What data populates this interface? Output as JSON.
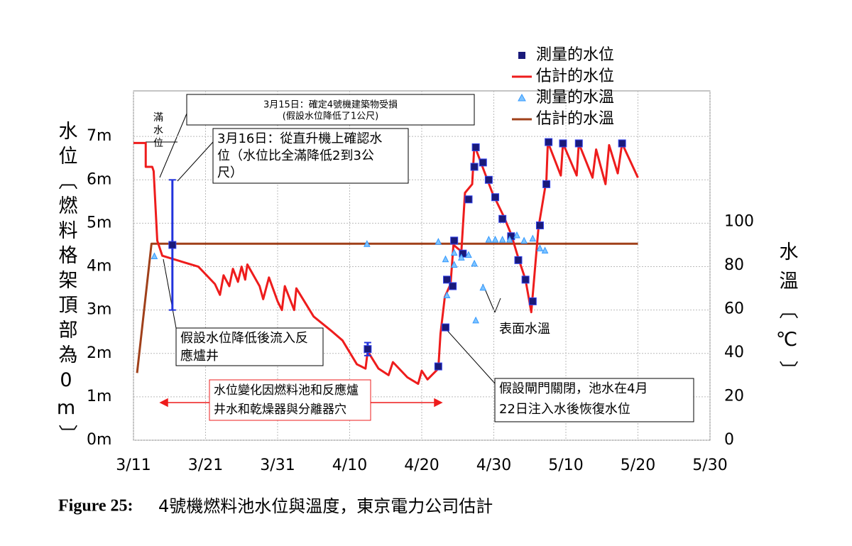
{
  "chart_data": {
    "type": "line",
    "y_label": "水位〔燃料格架頂部為0m〕",
    "y2_label": "水溫〔℃〕",
    "caption_label": "Figure 25:",
    "caption": "4號機燃料池水位與溫度，東京電力公司估計",
    "xlim": [
      0,
      80
    ],
    "xticks": [
      {
        "value": 0,
        "label": "3/11"
      },
      {
        "value": 10,
        "label": "3/21"
      },
      {
        "value": 20,
        "label": "3/31"
      },
      {
        "value": 30,
        "label": "4/10"
      },
      {
        "value": 40,
        "label": "4/20"
      },
      {
        "value": 50,
        "label": "4/30"
      },
      {
        "value": 60,
        "label": "5/10"
      },
      {
        "value": 70,
        "label": "5/20"
      },
      {
        "value": 80,
        "label": "5/30"
      }
    ],
    "ylim": [
      0,
      8.05
    ],
    "yticks": [
      {
        "value": 0,
        "label": "0m"
      },
      {
        "value": 1,
        "label": "1m"
      },
      {
        "value": 2,
        "label": "2m"
      },
      {
        "value": 3,
        "label": "3m"
      },
      {
        "value": 4,
        "label": "4m"
      },
      {
        "value": 5,
        "label": "5m"
      },
      {
        "value": 6,
        "label": "6m"
      },
      {
        "value": 7,
        "label": "7m"
      }
    ],
    "y2lim": [
      0,
      160
    ],
    "y2ticks": [
      0,
      20,
      40,
      60,
      80,
      100
    ],
    "grid": true,
    "series": [
      {
        "name": "測量的水位",
        "color": "#1a1a7a",
        "marker": "square",
        "x": [
          5.4,
          32.5,
          42.3,
          43.3,
          43.5,
          44.3,
          44.5,
          45.7,
          46.5,
          47.3,
          47.5,
          48.5,
          49.3,
          50.2,
          51.2,
          52.4,
          53.4,
          54.4,
          55.4,
          56.4,
          57.3,
          57.6,
          59.6,
          61.8,
          67.8
        ],
        "values": [
          4.5,
          2.1,
          1.7,
          2.6,
          3.7,
          3.55,
          4.6,
          4.3,
          5.55,
          6.3,
          6.75,
          6.4,
          6.0,
          5.6,
          5.1,
          4.7,
          4.15,
          3.7,
          3.2,
          4.95,
          5.9,
          6.87,
          6.84,
          6.84,
          6.84
        ],
        "errors": [
          1.5,
          0.15,
          null,
          null,
          null,
          null,
          null,
          null,
          null,
          null,
          null,
          null,
          null,
          null,
          null,
          null,
          null,
          null,
          null,
          null,
          null,
          null,
          null,
          null,
          null
        ]
      },
      {
        "name": "估計的水位",
        "color": "#ee1c1c",
        "marker": "line",
        "x": [
          0,
          1.7,
          1.7,
          2.6,
          2.8,
          3.3,
          4,
          9,
          11.3,
          12,
          12.5,
          13.3,
          13.8,
          14.5,
          15,
          15.5,
          15.8,
          17.5,
          18,
          18.8,
          20,
          20.6,
          21,
          22.3,
          22.6,
          25,
          27.6,
          29,
          31,
          32.2,
          32.5,
          34,
          35.4,
          36,
          38,
          39.5,
          40,
          40.8,
          42.3,
          42.6,
          43.2,
          44,
          44.4,
          45.5,
          46,
          47,
          47.3,
          49,
          49.8,
          51.4,
          52.4,
          53.4,
          54.4,
          55.2,
          56.2,
          57.3,
          57.5,
          59.3,
          59.6,
          61.5,
          61.8,
          63.7,
          64.2,
          65.5,
          66,
          67.2,
          67.8,
          70
        ],
        "values": [
          6.85,
          6.85,
          6.3,
          6.3,
          6.2,
          4.6,
          4.25,
          4.0,
          3.6,
          3.35,
          3.8,
          3.55,
          3.95,
          3.65,
          4.0,
          3.7,
          4.05,
          3.55,
          3.25,
          3.75,
          3.2,
          3.0,
          3.55,
          3.0,
          3.5,
          2.85,
          2.5,
          2.3,
          1.75,
          1.65,
          2.05,
          1.65,
          1.5,
          1.8,
          1.45,
          1.3,
          1.6,
          1.4,
          1.65,
          2.45,
          3.3,
          3.6,
          4.5,
          4.35,
          5.7,
          5.9,
          6.8,
          6.05,
          5.7,
          5.15,
          4.75,
          4.2,
          3.7,
          2.95,
          4.9,
          6.0,
          6.87,
          6.1,
          6.84,
          6.1,
          6.84,
          6.05,
          6.7,
          5.9,
          6.8,
          6.15,
          6.84,
          6.05
        ]
      },
      {
        "name": "測量的水溫",
        "color": "#3399ff",
        "marker": "triangle",
        "axis": "y2",
        "x": [
          2.9,
          32.4,
          42.3,
          43.3,
          43.5,
          44.5,
          44.5,
          45.5,
          46.5,
          47.3,
          47.5,
          48.5,
          49.3,
          50.2,
          51.2,
          52.2,
          53.2,
          54.2,
          55.4,
          56.4,
          57.1
        ],
        "values": [
          84.4,
          90,
          91,
          83,
          66.5,
          86,
          80.5,
          83.8,
          85,
          81,
          55,
          70,
          92,
          92,
          92,
          92,
          94,
          91.5,
          92.5,
          88,
          87
        ]
      },
      {
        "name": "估計的水溫",
        "color": "#a0401a",
        "marker": "line",
        "axis": "y2",
        "x": [
          0.5,
          2.5,
          70
        ],
        "values": [
          30.8,
          90,
          90
        ]
      }
    ],
    "annotations": [
      {
        "lines": [
          "滿",
          "水",
          "位"
        ]
      },
      {
        "lines": [
          "3月15日：確定4號機建築物受損",
          "(假設水位降低了1公尺)"
        ]
      },
      {
        "lines": [
          "3月16日：從直升機上確認水",
          "位（水位比全滿降低2到3公",
          "尺）"
        ]
      },
      {
        "lines": [
          "假設水位降低後流入反",
          "應爐井"
        ]
      },
      {
        "lines": [
          "水位變化因燃料池和反應爐",
          "井水和乾燥器與分離器穴"
        ]
      },
      {
        "lines": [
          "表面水溫"
        ]
      },
      {
        "lines": [
          "假設閘門關閉，池水在4月",
          "22日注入水後恢復水位"
        ]
      }
    ]
  }
}
